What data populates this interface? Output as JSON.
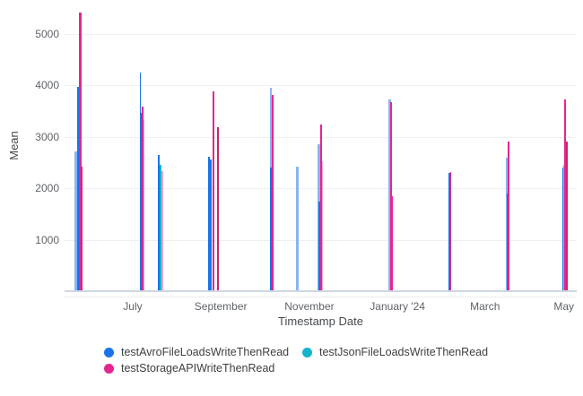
{
  "chart_data": {
    "type": "bar",
    "title": "",
    "ylabel": "Mean",
    "xlabel": "Timestamp Date",
    "ylim": [
      0,
      5650
    ],
    "grid": "horizontal",
    "legend_position": "bottom",
    "y_axis": {
      "title": "Mean",
      "ticks": [
        1000,
        2000,
        3000,
        4000,
        5000
      ]
    },
    "x_axis": {
      "title": "Timestamp Date",
      "ticks": [
        {
          "label": "July",
          "p": 0.133
        },
        {
          "label": "September",
          "p": 0.305
        },
        {
          "label": "November",
          "p": 0.478
        },
        {
          "label": "January '24",
          "p": 0.65
        },
        {
          "label": "March",
          "p": 0.821
        },
        {
          "label": "May",
          "p": 0.975
        }
      ]
    },
    "series": [
      {
        "id": "avro",
        "label": "testAvroFileLoadsWriteThenRead",
        "color": "#1a73e8",
        "light": "#8ab4f1",
        "dark": "#1765cc"
      },
      {
        "id": "json",
        "label": "testJsonFileLoadsWriteThenRead",
        "color": "#12b5cb",
        "light": "#7fd6e0",
        "dark": "#0e9cb0"
      },
      {
        "id": "storage",
        "label": "testStorageAPIWriteThenRead",
        "color": "#e52592",
        "light": "#f3a3c8",
        "dark": "#c9246d"
      }
    ],
    "bars": [
      {
        "p": 0.0219,
        "series": "avro",
        "value": 2700,
        "tone": "l",
        "w": 3
      },
      {
        "p": 0.0271,
        "series": "avro",
        "value": 3950,
        "tone": "n",
        "w": 2
      },
      {
        "p": 0.0333,
        "series": "storage",
        "value": 2400,
        "tone": "d",
        "w": 2
      },
      {
        "p": 0.0306,
        "series": "storage",
        "value": 5400,
        "tone": "n",
        "w": 2.5
      },
      {
        "p": 0.1476,
        "series": "avro",
        "value": 4230,
        "tone": "n",
        "w": 1.5
      },
      {
        "p": 0.1494,
        "series": "avro",
        "value": 3440,
        "tone": "n",
        "w": 2
      },
      {
        "p": 0.1541,
        "series": "storage",
        "value": 3300,
        "tone": "l",
        "w": 2.5
      },
      {
        "p": 0.1517,
        "series": "storage",
        "value": 3560,
        "tone": "n",
        "w": 2
      },
      {
        "p": 0.1844,
        "series": "avro",
        "value": 2620,
        "tone": "n",
        "w": 2
      },
      {
        "p": 0.1877,
        "series": "json",
        "value": 2430,
        "tone": "n",
        "w": 1.5
      },
      {
        "p": 0.1909,
        "series": "storage",
        "value": 2310,
        "tone": "l",
        "w": 2
      },
      {
        "p": 0.2811,
        "series": "avro",
        "value": 2590,
        "tone": "n",
        "w": 2
      },
      {
        "p": 0.2849,
        "series": "avro",
        "value": 2540,
        "tone": "n",
        "w": 2
      },
      {
        "p": 0.2904,
        "series": "storage",
        "value": 3870,
        "tone": "n",
        "w": 2
      },
      {
        "p": 0.3003,
        "series": "storage",
        "value": 3170,
        "tone": "d",
        "w": 2
      },
      {
        "p": 0.4024,
        "series": "avro",
        "value": 3940,
        "tone": "l",
        "w": 2.5
      },
      {
        "p": 0.4033,
        "series": "avro",
        "value": 2380,
        "tone": "n",
        "w": 2.5
      },
      {
        "p": 0.4071,
        "series": "storage",
        "value": 3800,
        "tone": "n",
        "w": 2
      },
      {
        "p": 0.4541,
        "series": "avro",
        "value": 2400,
        "tone": "l",
        "w": 2.5
      },
      {
        "p": 0.4961,
        "series": "avro",
        "value": 2840,
        "tone": "l",
        "w": 2.5
      },
      {
        "p": 0.4973,
        "series": "avro",
        "value": 1725,
        "tone": "n",
        "w": 2.5
      },
      {
        "p": 0.5022,
        "series": "storage",
        "value": 2515,
        "tone": "l",
        "w": 1.5
      },
      {
        "p": 0.5005,
        "series": "storage",
        "value": 3220,
        "tone": "n",
        "w": 2
      },
      {
        "p": 0.6327,
        "series": "avro",
        "value": 2450,
        "tone": "n",
        "w": 1.5
      },
      {
        "p": 0.6348,
        "series": "avro",
        "value": 3710,
        "tone": "l",
        "w": 2.5
      },
      {
        "p": 0.6378,
        "series": "storage",
        "value": 3660,
        "tone": "n",
        "w": 2
      },
      {
        "p": 0.6397,
        "series": "storage",
        "value": 1830,
        "tone": "n",
        "w": 2
      },
      {
        "p": 0.7517,
        "series": "avro",
        "value": 2280,
        "tone": "n",
        "w": 2
      },
      {
        "p": 0.7541,
        "series": "storage",
        "value": 2290,
        "tone": "n",
        "w": 1.5
      },
      {
        "p": 0.8638,
        "series": "avro",
        "value": 2580,
        "tone": "l",
        "w": 2
      },
      {
        "p": 0.8645,
        "series": "avro",
        "value": 1875,
        "tone": "n",
        "w": 2
      },
      {
        "p": 0.8666,
        "series": "storage",
        "value": 2890,
        "tone": "n",
        "w": 2
      },
      {
        "p": 0.9729,
        "series": "avro",
        "value": 2390,
        "tone": "n",
        "w": 2
      },
      {
        "p": 0.9755,
        "series": "avro",
        "value": 2440,
        "tone": "l",
        "w": 2
      },
      {
        "p": 0.9778,
        "series": "storage",
        "value": 3700,
        "tone": "n",
        "w": 2
      },
      {
        "p": 0.9807,
        "series": "storage",
        "value": 2890,
        "tone": "d",
        "w": 2
      }
    ]
  }
}
